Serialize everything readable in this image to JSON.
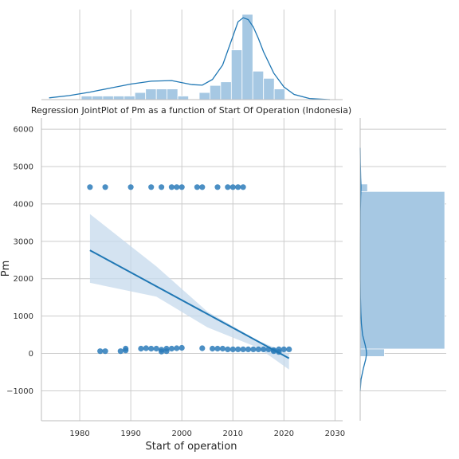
{
  "chart_data": {
    "type": "scatter",
    "title": "Regression JointPlot of Pm as a function of Start Of Operation (Indonesia)",
    "xlabel": "Start of operation",
    "ylabel": "Pm",
    "xlim": [
      1972.5,
      2031.5
    ],
    "ylim": [
      -1800,
      6300
    ],
    "xticks": [
      "1980",
      "1990",
      "2000",
      "2010",
      "2020",
      "2030"
    ],
    "yticks": [
      "−1000",
      "0",
      "1000",
      "2000",
      "3000",
      "4000",
      "5000",
      "6000"
    ],
    "grid": true,
    "colors": {
      "points": "#2b7bba",
      "regression": "#1f77b4",
      "band": "#c5d9ec",
      "hist": "#a6c8e3"
    },
    "series": [
      {
        "values": [
          [
            1982,
            4450
          ],
          [
            1985,
            4450
          ],
          [
            1990,
            4450
          ],
          [
            1994,
            4450
          ],
          [
            1996,
            4450
          ],
          [
            1998,
            4450
          ],
          [
            1999,
            4450
          ],
          [
            2000,
            4450
          ],
          [
            2003,
            4450
          ],
          [
            2004,
            4450
          ],
          [
            2007,
            4450
          ],
          [
            2009,
            4450
          ],
          [
            2010,
            4450
          ],
          [
            2011,
            4450
          ],
          [
            2012,
            4450
          ],
          [
            1984,
            60
          ],
          [
            1985,
            60
          ],
          [
            1988,
            60
          ],
          [
            1989,
            80
          ],
          [
            1989,
            130
          ],
          [
            1992,
            130
          ],
          [
            1993,
            140
          ],
          [
            1994,
            130
          ],
          [
            1995,
            130
          ],
          [
            1996,
            100
          ],
          [
            1996,
            50
          ],
          [
            1997,
            130
          ],
          [
            1997,
            60
          ],
          [
            1998,
            130
          ],
          [
            1999,
            140
          ],
          [
            2000,
            150
          ],
          [
            2004,
            140
          ],
          [
            2006,
            130
          ],
          [
            2007,
            130
          ],
          [
            2008,
            130
          ],
          [
            2009,
            110
          ],
          [
            2010,
            110
          ],
          [
            2011,
            110
          ],
          [
            2012,
            110
          ],
          [
            2013,
            110
          ],
          [
            2014,
            110
          ],
          [
            2015,
            110
          ],
          [
            2016,
            110
          ],
          [
            2017,
            110
          ],
          [
            2018,
            90
          ],
          [
            2018,
            60
          ],
          [
            2019,
            110
          ],
          [
            2019,
            40
          ],
          [
            2020,
            110
          ],
          [
            2021,
            110
          ]
        ]
      }
    ],
    "regression": {
      "x": [
        1982,
        2021
      ],
      "y": [
        2760,
        -130
      ],
      "ci_upper": [
        [
          1982,
          3730
        ],
        [
          1995,
          2330
        ],
        [
          2005,
          1120
        ],
        [
          2015,
          340
        ],
        [
          2021,
          -10
        ]
      ],
      "ci_lower": [
        [
          1982,
          1890
        ],
        [
          1995,
          1520
        ],
        [
          2005,
          700
        ],
        [
          2015,
          150
        ],
        [
          2021,
          -430
        ]
      ]
    },
    "marginal_x": {
      "bin_edges": [
        1974,
        1976.1,
        1978.2,
        1980.3,
        1982.4,
        1984.5,
        1986.6,
        1988.7,
        1990.8,
        1992.9,
        1995,
        1997.1,
        1999.2,
        2001.3,
        2003.4,
        2005.5,
        2007.6,
        2009.7,
        2011.8,
        2013.9,
        2016,
        2018.1,
        2020.2,
        2022.3
      ],
      "counts": [
        0,
        0,
        0,
        1,
        1,
        1,
        1,
        1,
        2,
        3,
        3,
        3,
        1,
        0,
        2,
        4,
        5,
        14,
        24,
        8,
        6,
        3,
        0
      ],
      "kde_x": [
        1974,
        1978,
        1982,
        1986,
        1990,
        1994,
        1998,
        2002,
        2004,
        2006,
        2008,
        2010,
        2011,
        2012,
        2013,
        2014,
        2015,
        2016,
        2018,
        2020,
        2022,
        2025,
        2029
      ],
      "kde_y": [
        0.3,
        0.7,
        1.3,
        2.0,
        2.7,
        3.2,
        3.3,
        2.6,
        2.5,
        3.5,
        6.0,
        11.0,
        13.5,
        14.2,
        13.9,
        12.6,
        10.6,
        8.3,
        4.6,
        2.2,
        0.9,
        0.2,
        0.0
      ]
    },
    "marginal_y": {
      "bin_edges": [
        -80,
        120,
        4330,
        4530
      ],
      "counts": [
        10,
        35,
        3
      ],
      "kde_y": [
        -1000,
        -700,
        -400,
        -150,
        0,
        100,
        250,
        500,
        800,
        1100,
        1500,
        2000,
        3000,
        3800,
        4200,
        4350,
        4450,
        4550,
        4700,
        5100,
        5500
      ],
      "kde_x": [
        0.0,
        0.02,
        0.08,
        0.14,
        0.16,
        0.15,
        0.12,
        0.06,
        0.03,
        0.015,
        0.005,
        0.002,
        0.001,
        0.004,
        0.012,
        0.018,
        0.02,
        0.018,
        0.012,
        0.004,
        0.0
      ]
    }
  }
}
